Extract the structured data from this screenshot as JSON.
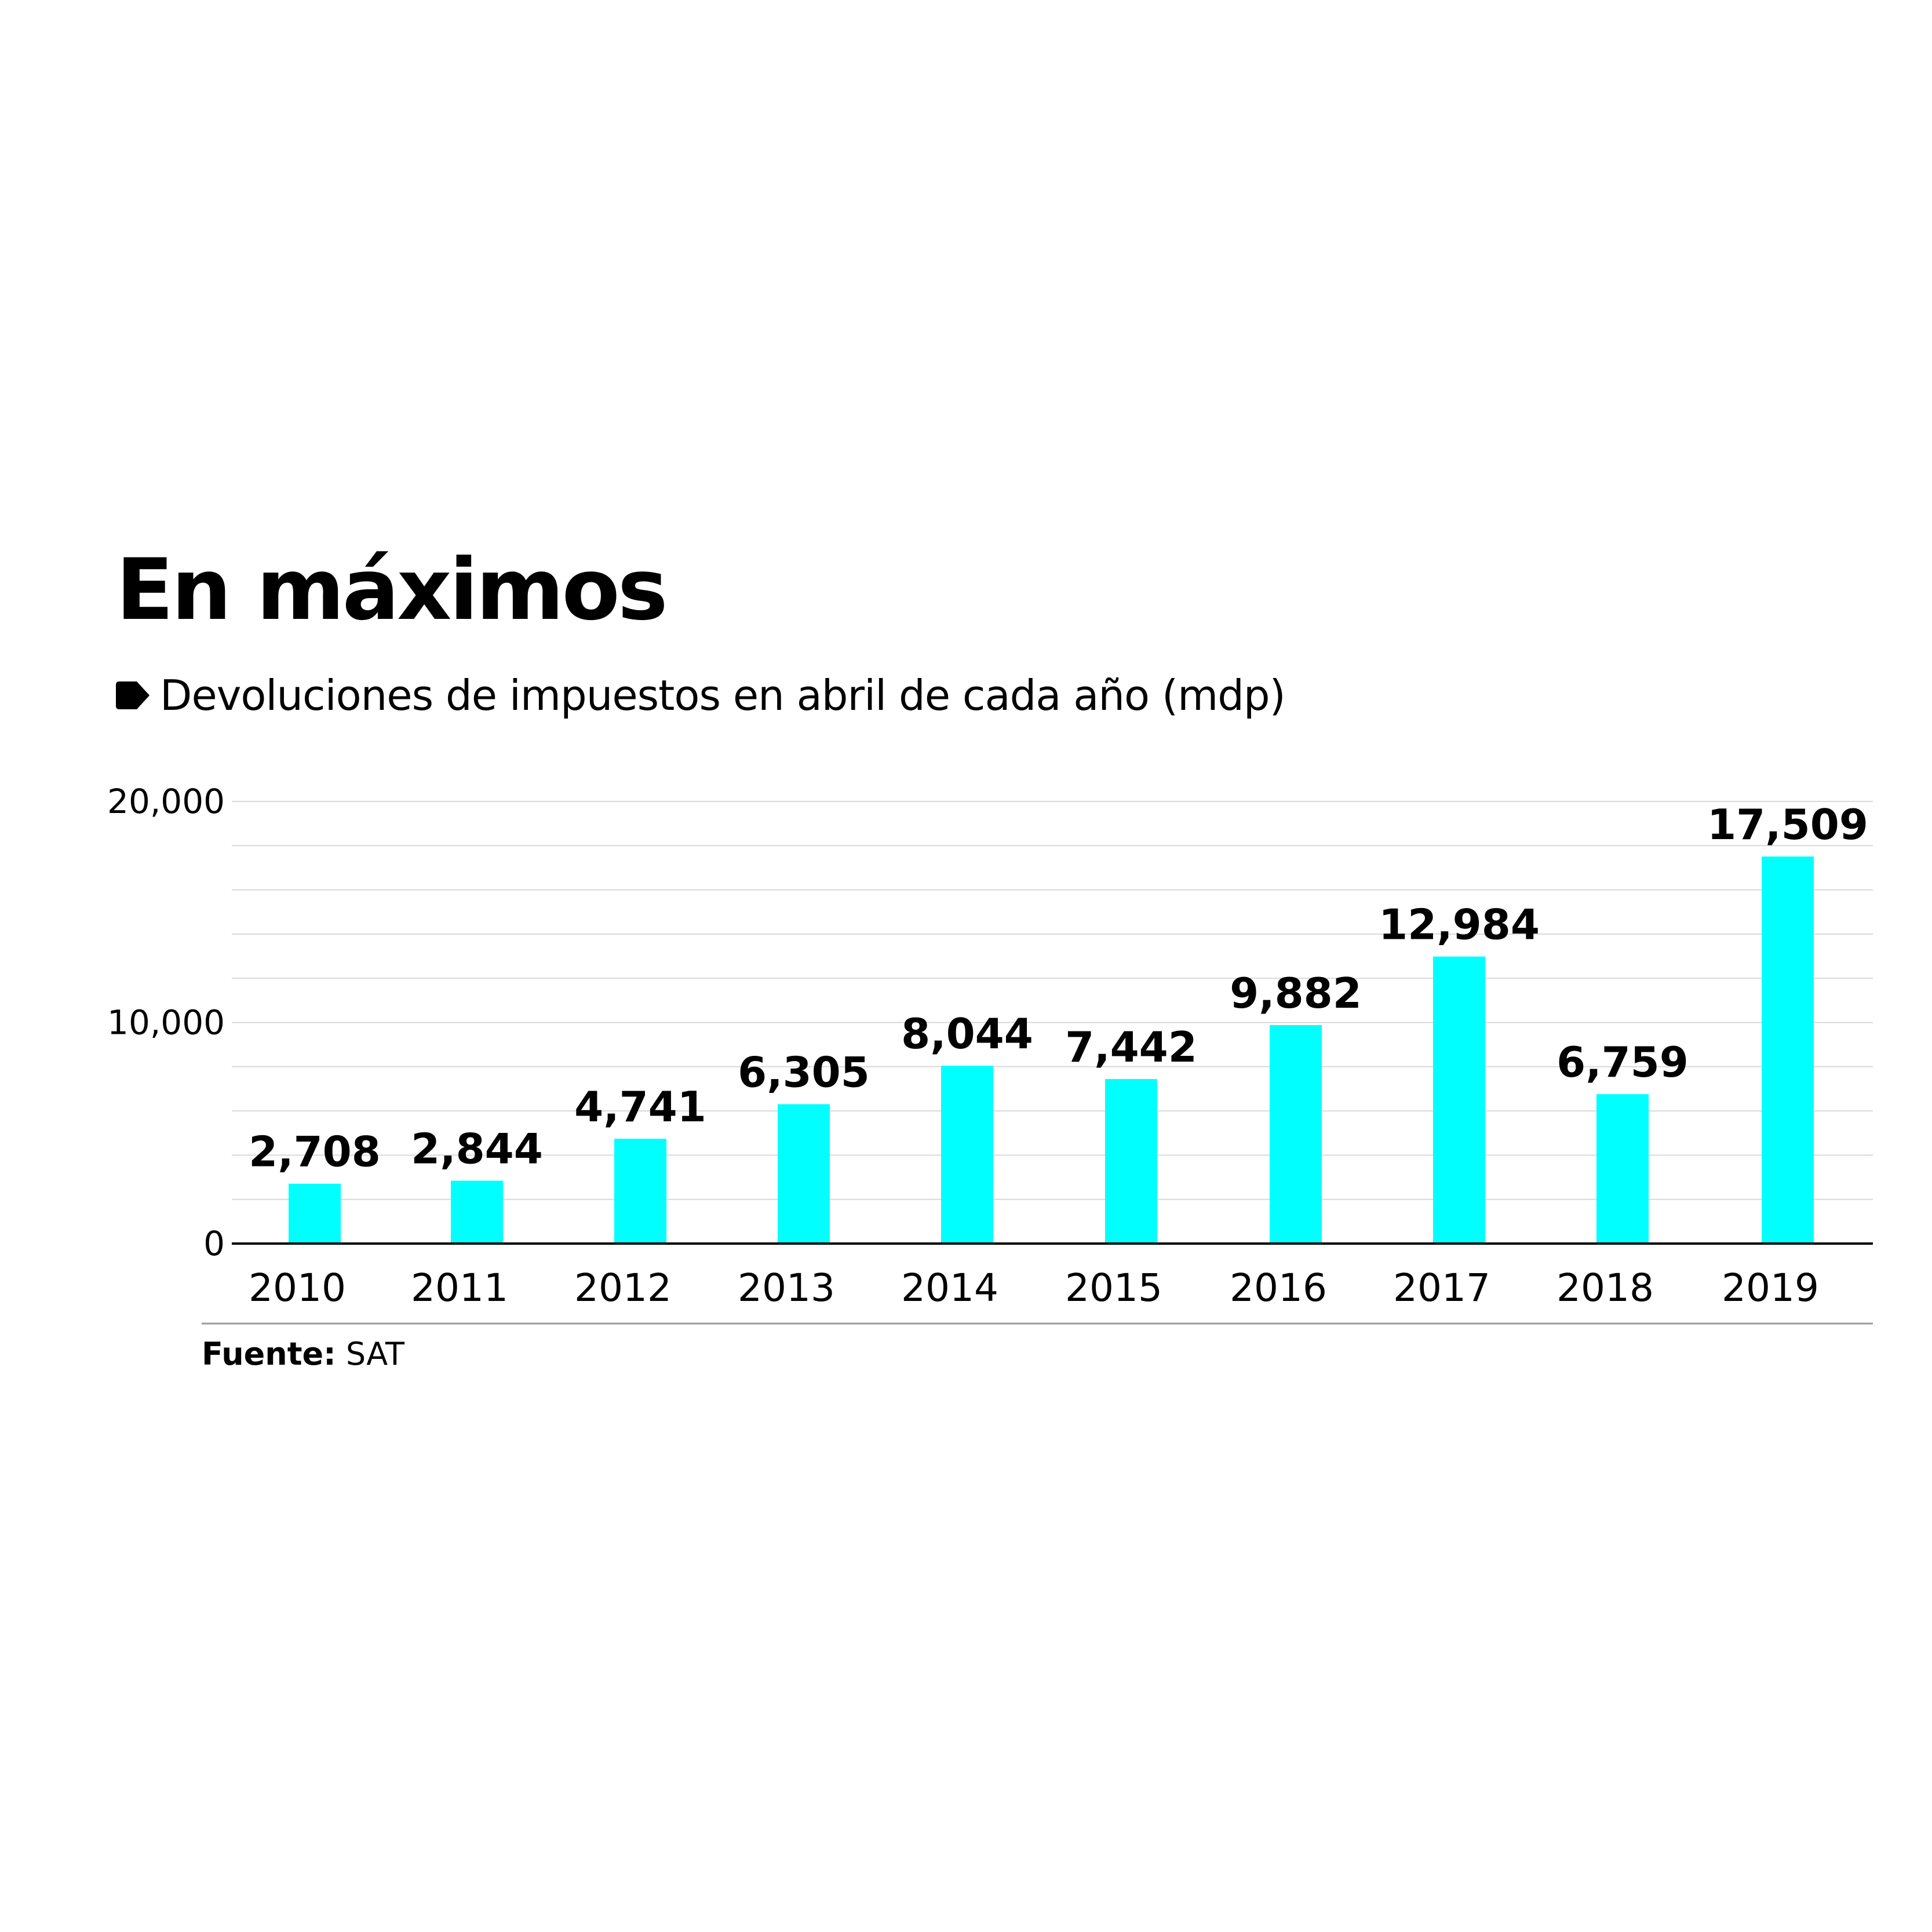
{
  "title": "En máximos",
  "subtitle": "Devoluciones de impuestos en abril de cada año (mdp)",
  "source": {
    "label": "Fuente:",
    "value": "SAT"
  },
  "colors": {
    "bar": "#00FFFF",
    "text": "#000000",
    "grid": "#D9D9D9",
    "axis": "#000000"
  },
  "icons": {
    "bullet": "tag-bullet-icon"
  },
  "chart_data": {
    "type": "bar",
    "title": "En máximos",
    "subtitle": "Devoluciones de impuestos en abril de cada año (mdp)",
    "xlabel": "",
    "ylabel": "",
    "categories": [
      "2010",
      "2011",
      "2012",
      "2013",
      "2014",
      "2015",
      "2016",
      "2017",
      "2018",
      "2019"
    ],
    "values": [
      2708,
      2844,
      4741,
      6305,
      8044,
      7442,
      9882,
      12984,
      6759,
      17509
    ],
    "value_labels": [
      "2,708",
      "2,844",
      "4,741",
      "6,305",
      "8,044",
      "7,442",
      "9,882",
      "12,984",
      "6,759",
      "17,509"
    ],
    "ylim": [
      0,
      20000
    ],
    "y_ticks": [
      0,
      10000,
      20000
    ],
    "y_tick_labels": [
      "0",
      "10,000",
      "20,000"
    ],
    "minor_grid_step": 2000,
    "grid": true,
    "legend": "none"
  }
}
